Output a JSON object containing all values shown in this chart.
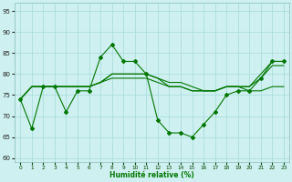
{
  "xlabel": "Humidité relative (%)",
  "xlim": [
    -0.5,
    23.5
  ],
  "ylim": [
    59,
    97
  ],
  "yticks": [
    60,
    65,
    70,
    75,
    80,
    85,
    90,
    95
  ],
  "xticks": [
    0,
    1,
    2,
    3,
    4,
    5,
    6,
    7,
    8,
    9,
    10,
    11,
    12,
    13,
    14,
    15,
    16,
    17,
    18,
    19,
    20,
    21,
    22,
    23
  ],
  "bg_color": "#cff0f0",
  "grid_color": "#b0e0e0",
  "line_color": "#007700",
  "line_main": [
    74,
    67,
    77,
    77,
    71,
    76,
    76,
    84,
    87,
    83,
    83,
    80,
    69,
    66,
    66,
    65,
    68,
    71,
    75,
    76,
    76,
    79,
    83,
    83
  ],
  "line_s1": [
    74,
    77,
    77,
    77,
    77,
    77,
    77,
    78,
    79,
    79,
    79,
    79,
    78,
    77,
    77,
    76,
    76,
    76,
    77,
    77,
    76,
    76,
    77,
    77
  ],
  "line_s2": [
    74,
    77,
    77,
    77,
    77,
    77,
    77,
    78,
    80,
    80,
    80,
    80,
    79,
    77,
    77,
    76,
    76,
    76,
    77,
    77,
    77,
    79,
    82,
    82
  ],
  "line_s3": [
    74,
    77,
    77,
    77,
    77,
    77,
    77,
    78,
    80,
    80,
    80,
    80,
    79,
    78,
    78,
    77,
    76,
    76,
    77,
    77,
    77,
    80,
    83,
    83
  ]
}
